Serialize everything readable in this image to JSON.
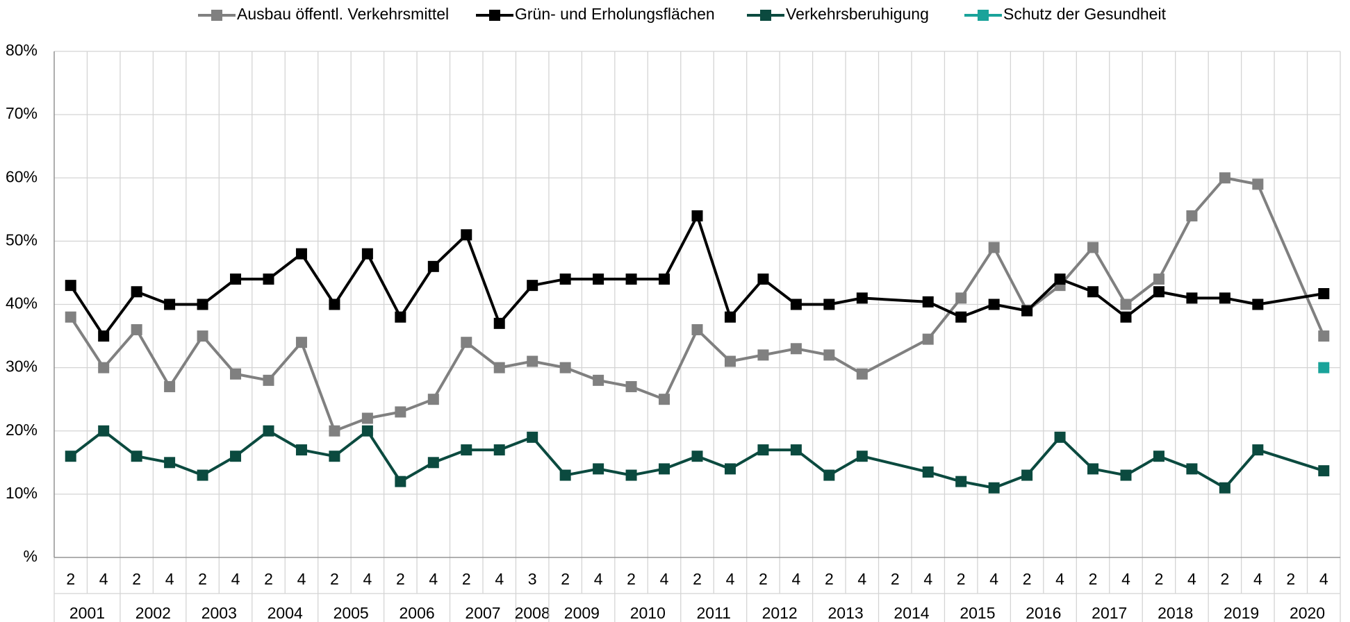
{
  "chart_data": {
    "type": "line",
    "category_groups": [
      {
        "name": "2001",
        "categories": [
          "2",
          "4"
        ]
      },
      {
        "name": "2002",
        "categories": [
          "2",
          "4"
        ]
      },
      {
        "name": "2003",
        "categories": [
          "2",
          "4"
        ]
      },
      {
        "name": "2004",
        "categories": [
          "2",
          "4"
        ]
      },
      {
        "name": "2005",
        "categories": [
          "2",
          "4"
        ]
      },
      {
        "name": "2006",
        "categories": [
          "2",
          "4"
        ]
      },
      {
        "name": "2007",
        "categories": [
          "2",
          "4"
        ]
      },
      {
        "name": "2008",
        "categories": [
          "3"
        ]
      },
      {
        "name": "2009",
        "categories": [
          "2",
          "4"
        ]
      },
      {
        "name": "2010",
        "categories": [
          "2",
          "4"
        ]
      },
      {
        "name": "2011",
        "categories": [
          "2",
          "4"
        ]
      },
      {
        "name": "2012",
        "categories": [
          "2",
          "4"
        ]
      },
      {
        "name": "2013",
        "categories": [
          "2",
          "4"
        ]
      },
      {
        "name": "2014",
        "categories": [
          "2",
          "4"
        ]
      },
      {
        "name": "2015",
        "categories": [
          "2",
          "4"
        ]
      },
      {
        "name": "2016",
        "categories": [
          "2",
          "4"
        ]
      },
      {
        "name": "2017",
        "categories": [
          "2",
          "4"
        ]
      },
      {
        "name": "2018",
        "categories": [
          "2",
          "4"
        ]
      },
      {
        "name": "2019",
        "categories": [
          "2",
          "4"
        ]
      },
      {
        "name": "2020",
        "categories": [
          "2",
          "4"
        ]
      }
    ],
    "series": [
      {
        "name": "Ausbau öffentl. Verkehrsmittel",
        "color": "#808080",
        "values": [
          38,
          30,
          36,
          27,
          35,
          29,
          28,
          34,
          20,
          22,
          23,
          25,
          34,
          30,
          31,
          30,
          28,
          27,
          25,
          36,
          31,
          32,
          33,
          32,
          29,
          null,
          34.5,
          41,
          49,
          39,
          43,
          49,
          40,
          44,
          54,
          60,
          59,
          null,
          35
        ]
      },
      {
        "name": "Grün- und Erholungsflächen",
        "color": "#000000",
        "values": [
          43,
          35,
          42,
          40,
          40,
          44,
          44,
          48,
          40,
          48,
          38,
          46,
          51,
          37,
          43,
          44,
          44,
          44,
          44,
          54,
          38,
          44,
          40,
          40,
          41,
          null,
          40.4,
          38,
          40,
          39,
          44,
          42,
          38,
          42,
          41,
          41,
          40,
          null,
          41.7
        ]
      },
      {
        "name": "Verkehrsberuhigung",
        "color": "#0b4a3f",
        "values": [
          16,
          20,
          16,
          15,
          13,
          16,
          20,
          17,
          16,
          20,
          12,
          15,
          17,
          17,
          19,
          13,
          14,
          13,
          14,
          16,
          14,
          17,
          17,
          13,
          16,
          null,
          13.5,
          12,
          11,
          13,
          19,
          14,
          13,
          16,
          14,
          11,
          17,
          null,
          13.7
        ]
      },
      {
        "name": "Schutz der Gesundheit",
        "color": "#1aa39a",
        "values": [
          null,
          null,
          null,
          null,
          null,
          null,
          null,
          null,
          null,
          null,
          null,
          null,
          null,
          null,
          null,
          null,
          null,
          null,
          null,
          null,
          null,
          null,
          null,
          null,
          null,
          null,
          null,
          null,
          null,
          null,
          null,
          null,
          null,
          null,
          null,
          null,
          null,
          null,
          30
        ]
      }
    ],
    "span_gaps": true,
    "ylim": [
      0,
      80
    ],
    "yticks": [
      {
        "value": 0,
        "label": "%"
      },
      {
        "value": 10,
        "label": "10%"
      },
      {
        "value": 20,
        "label": "20%"
      },
      {
        "value": 30,
        "label": "30%"
      },
      {
        "value": 40,
        "label": "40%"
      },
      {
        "value": 50,
        "label": "50%"
      },
      {
        "value": 60,
        "label": "60%"
      },
      {
        "value": 70,
        "label": "70%"
      },
      {
        "value": 80,
        "label": "80%"
      }
    ],
    "grid": true,
    "legend": "top"
  }
}
